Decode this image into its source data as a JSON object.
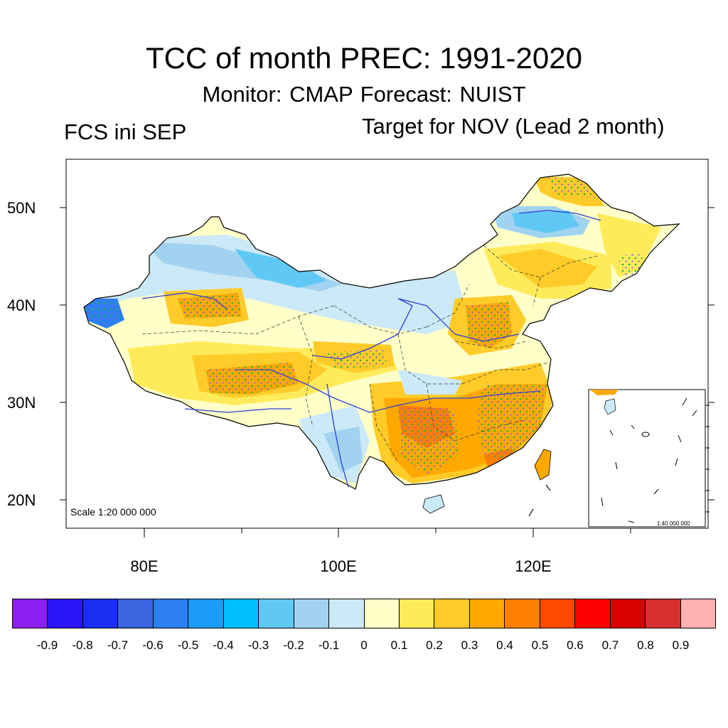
{
  "title": "TCC of month PREC: 1991-2020",
  "subtitle": "Monitor: CMAP   Forecast: NUIST",
  "left_subtitle": "FCS ini SEP",
  "right_subtitle": "Target for NOV (Lead 2 month)",
  "map": {
    "lat_labels": [
      "50N",
      "40N",
      "30N",
      "20N"
    ],
    "lon_labels": [
      "80E",
      "100E",
      "120E"
    ],
    "scale_label": "Scale 1:20 000 000",
    "inset_scale_label": "1:40 000 000",
    "river_color": "#2a3fd6",
    "boundary_color": "#000000",
    "stipple_color": "#22b14c"
  },
  "colorbar": {
    "colors": [
      "#8b1ff0",
      "#2b14f5",
      "#1a2ff0",
      "#3a64e0",
      "#2d7ff0",
      "#1e9bf6",
      "#00bfff",
      "#60c8f5",
      "#a1d3f0",
      "#cce9f7",
      "#ffffc8",
      "#ffeb5a",
      "#ffcb28",
      "#ffa800",
      "#ff7f00",
      "#ff4a00",
      "#ff0000",
      "#d80000",
      "#d83030",
      "#ffb0b0"
    ],
    "labels": [
      "-0.9",
      "-0.8",
      "-0.7",
      "-0.6",
      "-0.5",
      "-0.4",
      "-0.3",
      "-0.2",
      "-0.1",
      "0",
      "0.1",
      "0.2",
      "0.3",
      "0.4",
      "0.5",
      "0.6",
      "0.7",
      "0.8",
      "0.9"
    ]
  }
}
